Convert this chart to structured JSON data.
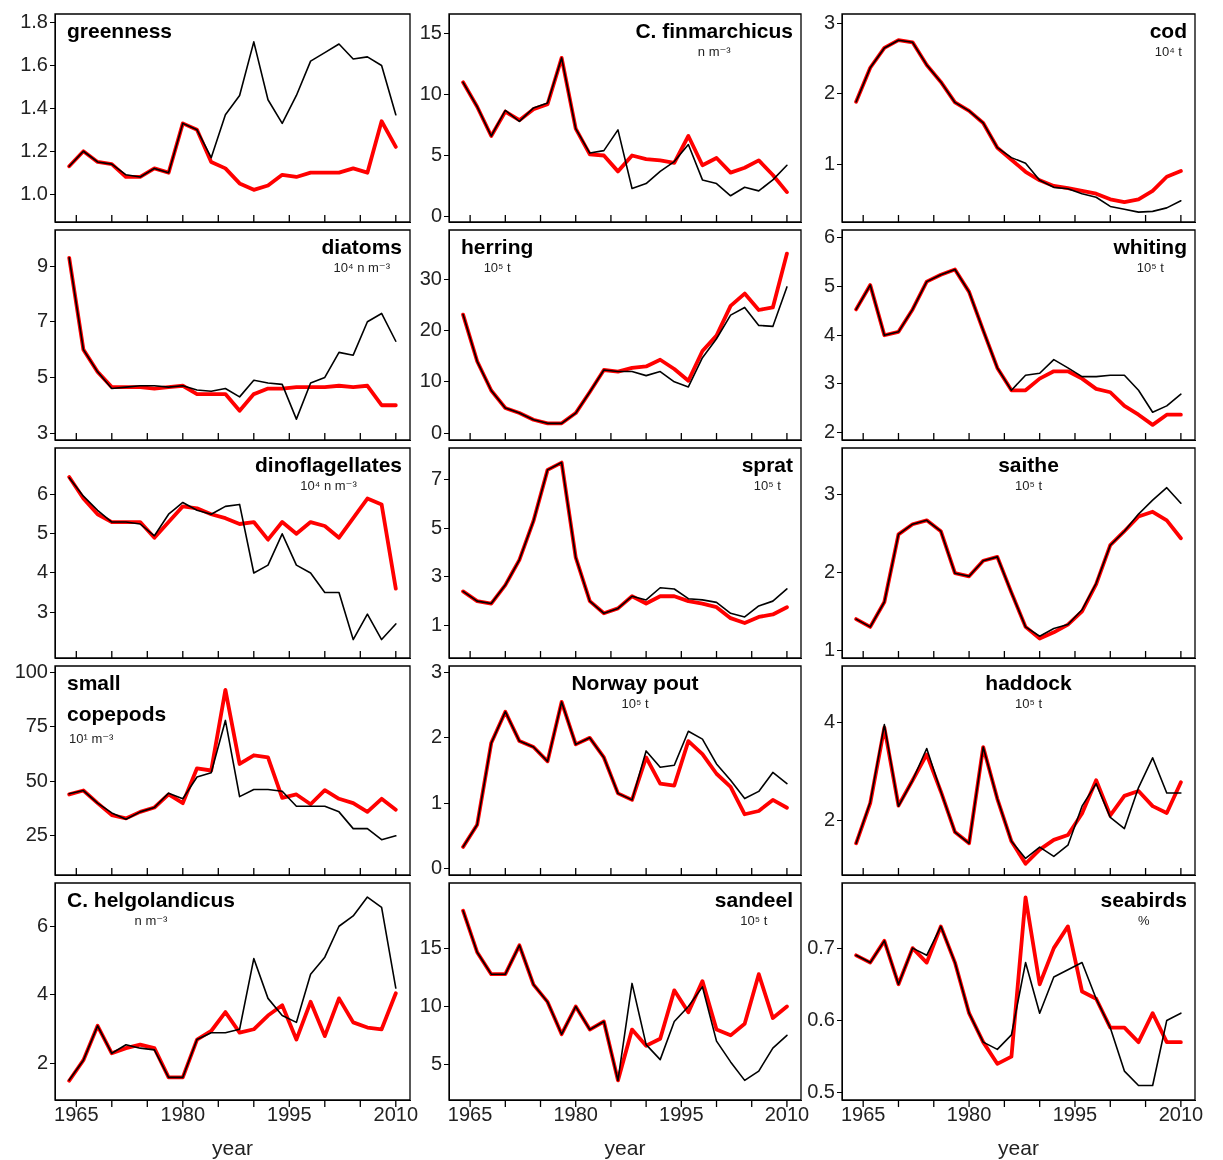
{
  "chart_data": [
    {
      "type": "line",
      "title": "greenness",
      "x": [
        1964,
        1966,
        1968,
        1970,
        1972,
        1974,
        1976,
        1978,
        1980,
        1982,
        1984,
        1986,
        1988,
        1990,
        1992,
        1994,
        1996,
        1998,
        2000,
        2002,
        2004,
        2006,
        2008,
        2010
      ],
      "xlim": [
        1962,
        2012
      ],
      "ylim": [
        0.87,
        1.84
      ],
      "xticks": [
        {
          "value": 1965,
          "label": null
        },
        {
          "value": 1970,
          "label": null
        },
        {
          "value": 1975,
          "label": null
        },
        {
          "value": 1980,
          "label": null
        },
        {
          "value": 1985,
          "label": null
        },
        {
          "value": 1990,
          "label": null
        },
        {
          "value": 1995,
          "label": null
        },
        {
          "value": 2000,
          "label": null
        },
        {
          "value": 2005,
          "label": null
        },
        {
          "value": 2010,
          "label": null
        }
      ],
      "yticks": [
        {
          "value": 1,
          "label": "1.0"
        },
        {
          "value": 1.2,
          "label": "1.2"
        },
        {
          "value": 1.4,
          "label": "1.4"
        },
        {
          "value": 1.6,
          "label": "1.6"
        },
        {
          "value": 1.8,
          "label": "1.8"
        }
      ],
      "tick_labels": "y",
      "series": [
        {
          "color": "#000000",
          "values": [
            1.13,
            1.2,
            1.15,
            1.14,
            1.09,
            1.08,
            1.12,
            1.1,
            1.33,
            1.3,
            1.17,
            1.37,
            1.46,
            1.71,
            1.44,
            1.33,
            1.46,
            1.62,
            1.66,
            1.7,
            1.63,
            1.64,
            1.6,
            1.37
          ]
        },
        {
          "color": "#ff0000",
          "values": [
            1.13,
            1.2,
            1.15,
            1.14,
            1.08,
            1.08,
            1.12,
            1.1,
            1.33,
            1.3,
            1.15,
            1.12,
            1.05,
            1.02,
            1.04,
            1.09,
            1.08,
            1.1,
            1.1,
            1.1,
            1.12,
            1.1,
            1.34,
            1.22
          ]
        }
      ]
    },
    {
      "type": "line",
      "title": "C. finmarchicus",
      "subtitle": "n m⁻³",
      "x": [
        1964,
        1966,
        1968,
        1970,
        1972,
        1974,
        1976,
        1978,
        1980,
        1982,
        1984,
        1986,
        1988,
        1990,
        1992,
        1994,
        1996,
        1998,
        2000,
        2002,
        2004,
        2006,
        2008,
        2010
      ],
      "xlim": [
        1962,
        2012
      ],
      "ylim": [
        -0.45,
        16.6
      ],
      "xticks": [
        {
          "value": 1965,
          "label": null
        },
        {
          "value": 1970,
          "label": null
        },
        {
          "value": 1975,
          "label": null
        },
        {
          "value": 1980,
          "label": null
        },
        {
          "value": 1985,
          "label": null
        },
        {
          "value": 1990,
          "label": null
        },
        {
          "value": 1995,
          "label": null
        },
        {
          "value": 2000,
          "label": null
        },
        {
          "value": 2005,
          "label": null
        },
        {
          "value": 2010,
          "label": null
        }
      ],
      "yticks": [
        0,
        5,
        10,
        15
      ],
      "tick_labels": "y",
      "series": [
        {
          "color": "#000000",
          "values": [
            11.0,
            9.0,
            6.6,
            8.7,
            7.8,
            8.9,
            9.3,
            13.0,
            7.2,
            5.2,
            5.4,
            7.1,
            2.3,
            2.7,
            3.7,
            4.5,
            5.9,
            3.0,
            2.7,
            1.7,
            2.4,
            2.1,
            3.0,
            4.2
          ]
        },
        {
          "color": "#ff0000",
          "values": [
            11.0,
            9.0,
            6.6,
            8.6,
            7.9,
            8.8,
            9.2,
            13.0,
            7.2,
            5.1,
            5.0,
            3.7,
            5.0,
            4.7,
            4.6,
            4.4,
            6.6,
            4.2,
            4.8,
            3.6,
            4.0,
            4.6,
            3.4,
            2.0
          ]
        }
      ]
    },
    {
      "type": "line",
      "title": "cod",
      "subtitle": "10⁴ t",
      "x": [
        1964,
        1966,
        1968,
        1970,
        1972,
        1974,
        1976,
        1978,
        1980,
        1982,
        1984,
        1986,
        1988,
        1990,
        1992,
        1994,
        1996,
        1998,
        2000,
        2002,
        2004,
        2006,
        2008,
        2010
      ],
      "xlim": [
        1962,
        2012
      ],
      "ylim": [
        0.19,
        3.13
      ],
      "xticks": [
        {
          "value": 1965,
          "label": null
        },
        {
          "value": 1970,
          "label": null
        },
        {
          "value": 1975,
          "label": null
        },
        {
          "value": 1980,
          "label": null
        },
        {
          "value": 1985,
          "label": null
        },
        {
          "value": 1990,
          "label": null
        },
        {
          "value": 1995,
          "label": null
        },
        {
          "value": 2000,
          "label": null
        },
        {
          "value": 2005,
          "label": null
        },
        {
          "value": 2010,
          "label": null
        }
      ],
      "yticks": [
        1,
        2,
        3
      ],
      "tick_labels": "y",
      "series": [
        {
          "color": "#000000",
          "values": [
            1.89,
            2.37,
            2.65,
            2.76,
            2.73,
            2.41,
            2.17,
            1.88,
            1.76,
            1.59,
            1.24,
            1.1,
            1.02,
            0.78,
            0.68,
            0.66,
            0.59,
            0.54,
            0.41,
            0.37,
            0.33,
            0.34,
            0.39,
            0.49
          ]
        },
        {
          "color": "#ff0000",
          "values": [
            1.89,
            2.37,
            2.65,
            2.76,
            2.73,
            2.41,
            2.17,
            1.88,
            1.76,
            1.59,
            1.24,
            1.07,
            0.9,
            0.78,
            0.7,
            0.67,
            0.63,
            0.59,
            0.51,
            0.47,
            0.51,
            0.63,
            0.83,
            0.91
          ]
        }
      ]
    },
    {
      "type": "line",
      "title": "diatoms",
      "subtitle": "10⁴ n m⁻³",
      "x": [
        1964,
        1966,
        1968,
        1970,
        1972,
        1974,
        1976,
        1978,
        1980,
        1982,
        1984,
        1986,
        1988,
        1990,
        1992,
        1994,
        1996,
        1998,
        2000,
        2002,
        2004,
        2006,
        2008,
        2010
      ],
      "xlim": [
        1962,
        2012
      ],
      "ylim": [
        2.75,
        10.3
      ],
      "xticks": [
        {
          "value": 1965,
          "label": null
        },
        {
          "value": 1970,
          "label": null
        },
        {
          "value": 1975,
          "label": null
        },
        {
          "value": 1980,
          "label": null
        },
        {
          "value": 1985,
          "label": null
        },
        {
          "value": 1990,
          "label": null
        },
        {
          "value": 1995,
          "label": null
        },
        {
          "value": 2000,
          "label": null
        },
        {
          "value": 2005,
          "label": null
        },
        {
          "value": 2010,
          "label": null
        }
      ],
      "yticks": [
        3,
        5,
        7,
        9
      ],
      "tick_labels": "y",
      "series": [
        {
          "color": "#000000",
          "values": [
            9.3,
            6.0,
            5.2,
            4.6,
            4.65,
            4.7,
            4.7,
            4.65,
            4.7,
            4.55,
            4.5,
            4.6,
            4.3,
            4.9,
            4.8,
            4.75,
            3.5,
            4.8,
            5.0,
            5.9,
            5.8,
            7.0,
            7.3,
            6.3
          ]
        },
        {
          "color": "#ff0000",
          "values": [
            9.3,
            6.0,
            5.2,
            4.65,
            4.65,
            4.65,
            4.6,
            4.65,
            4.7,
            4.4,
            4.4,
            4.4,
            3.8,
            4.4,
            4.6,
            4.6,
            4.65,
            4.65,
            4.65,
            4.7,
            4.65,
            4.7,
            4.0,
            4.0
          ]
        }
      ]
    },
    {
      "type": "line",
      "title": "herring",
      "subtitle": "10⁵ t",
      "x": [
        1964,
        1966,
        1968,
        1970,
        1972,
        1974,
        1976,
        1978,
        1980,
        1982,
        1984,
        1986,
        1988,
        1990,
        1992,
        1994,
        1996,
        1998,
        2000,
        2002,
        2004,
        2006,
        2008,
        2010
      ],
      "xlim": [
        1962,
        2012
      ],
      "ylim": [
        -1.35,
        39.6
      ],
      "xticks": [
        {
          "value": 1965,
          "label": null
        },
        {
          "value": 1970,
          "label": null
        },
        {
          "value": 1975,
          "label": null
        },
        {
          "value": 1980,
          "label": null
        },
        {
          "value": 1985,
          "label": null
        },
        {
          "value": 1990,
          "label": null
        },
        {
          "value": 1995,
          "label": null
        },
        {
          "value": 2000,
          "label": null
        },
        {
          "value": 2005,
          "label": null
        },
        {
          "value": 2010,
          "label": null
        }
      ],
      "yticks": [
        0,
        10,
        20,
        30
      ],
      "tick_labels": "y",
      "series": [
        {
          "color": "#000000",
          "values": [
            23.1,
            14.0,
            8.3,
            4.9,
            3.9,
            2.6,
            1.9,
            1.9,
            3.9,
            8.0,
            12.3,
            12.0,
            12.0,
            11.2,
            12.0,
            10.0,
            9.0,
            14.7,
            18.4,
            23.0,
            24.5,
            21.0,
            20.8,
            28.5
          ]
        },
        {
          "color": "#ff0000",
          "values": [
            23.1,
            14.0,
            8.3,
            4.9,
            3.9,
            2.6,
            1.9,
            1.9,
            3.9,
            8.0,
            12.3,
            12.0,
            12.7,
            13.0,
            14.3,
            12.5,
            10.2,
            16.0,
            19.0,
            24.8,
            27.2,
            24.0,
            24.5,
            35.0
          ]
        }
      ]
    },
    {
      "type": "line",
      "title": "whiting",
      "subtitle": "10⁵ t",
      "x": [
        1964,
        1966,
        1968,
        1970,
        1972,
        1974,
        1976,
        1978,
        1980,
        1982,
        1984,
        1986,
        1988,
        1990,
        1992,
        1994,
        1996,
        1998,
        2000,
        2002,
        2004,
        2006,
        2008,
        2010
      ],
      "xlim": [
        1962,
        2012
      ],
      "ylim": [
        1.85,
        6.16
      ],
      "xticks": [
        {
          "value": 1965,
          "label": null
        },
        {
          "value": 1970,
          "label": null
        },
        {
          "value": 1975,
          "label": null
        },
        {
          "value": 1980,
          "label": null
        },
        {
          "value": 1985,
          "label": null
        },
        {
          "value": 1990,
          "label": null
        },
        {
          "value": 1995,
          "label": null
        },
        {
          "value": 2000,
          "label": null
        },
        {
          "value": 2005,
          "label": null
        },
        {
          "value": 2010,
          "label": null
        }
      ],
      "yticks": [
        2,
        3,
        4,
        5,
        6
      ],
      "tick_labels": "y",
      "series": [
        {
          "color": "#000000",
          "values": [
            4.53,
            5.03,
            4.0,
            4.07,
            4.53,
            5.1,
            5.24,
            5.35,
            4.89,
            4.1,
            3.33,
            2.87,
            3.18,
            3.22,
            3.5,
            3.33,
            3.15,
            3.15,
            3.18,
            3.18,
            2.87,
            2.42,
            2.55,
            2.79
          ]
        },
        {
          "color": "#ff0000",
          "values": [
            4.53,
            5.03,
            4.0,
            4.07,
            4.53,
            5.1,
            5.24,
            5.35,
            4.89,
            4.1,
            3.33,
            2.87,
            2.87,
            3.11,
            3.26,
            3.26,
            3.11,
            2.9,
            2.83,
            2.55,
            2.37,
            2.16,
            2.37,
            2.37
          ]
        }
      ]
    },
    {
      "type": "line",
      "title": "dinoflagellates",
      "subtitle": "10⁴ n m⁻³",
      "x": [
        1964,
        1966,
        1968,
        1970,
        1972,
        1974,
        1976,
        1978,
        1980,
        1982,
        1984,
        1986,
        1988,
        1990,
        1992,
        1994,
        1996,
        1998,
        2000,
        2002,
        2004,
        2006,
        2008,
        2010
      ],
      "xlim": [
        1962,
        2012
      ],
      "ylim": [
        1.83,
        7.19
      ],
      "xticks": [
        {
          "value": 1965,
          "label": null
        },
        {
          "value": 1970,
          "label": null
        },
        {
          "value": 1975,
          "label": null
        },
        {
          "value": 1980,
          "label": null
        },
        {
          "value": 1985,
          "label": null
        },
        {
          "value": 1990,
          "label": null
        },
        {
          "value": 1995,
          "label": null
        },
        {
          "value": 2000,
          "label": null
        },
        {
          "value": 2005,
          "label": null
        },
        {
          "value": 2010,
          "label": null
        }
      ],
      "yticks": [
        3,
        4,
        5,
        6
      ],
      "tick_labels": "y",
      "series": [
        {
          "color": "#000000",
          "values": [
            6.43,
            5.96,
            5.6,
            5.3,
            5.3,
            5.25,
            4.95,
            5.5,
            5.8,
            5.6,
            5.5,
            5.7,
            5.75,
            4.0,
            4.2,
            5.0,
            4.2,
            4.0,
            3.5,
            3.5,
            2.3,
            2.95,
            2.3,
            2.7
          ]
        },
        {
          "color": "#ff0000",
          "values": [
            6.45,
            5.9,
            5.5,
            5.3,
            5.3,
            5.3,
            4.9,
            5.3,
            5.7,
            5.65,
            5.5,
            5.4,
            5.25,
            5.3,
            4.85,
            5.3,
            5.0,
            5.3,
            5.2,
            4.9,
            5.4,
            5.9,
            5.75,
            3.6
          ]
        }
      ]
    },
    {
      "type": "line",
      "title": "sprat",
      "subtitle": "10⁵ t",
      "x": [
        1964,
        1966,
        1968,
        1970,
        1972,
        1974,
        1976,
        1978,
        1980,
        1982,
        1984,
        1986,
        1988,
        1990,
        1992,
        1994,
        1996,
        1998,
        2000,
        2002,
        2004,
        2006,
        2008,
        2010
      ],
      "xlim": [
        1962,
        2012
      ],
      "ylim": [
        -0.34,
        8.3
      ],
      "xticks": [
        {
          "value": 1965,
          "label": null
        },
        {
          "value": 1970,
          "label": null
        },
        {
          "value": 1975,
          "label": null
        },
        {
          "value": 1980,
          "label": null
        },
        {
          "value": 1985,
          "label": null
        },
        {
          "value": 1990,
          "label": null
        },
        {
          "value": 1995,
          "label": null
        },
        {
          "value": 2000,
          "label": null
        },
        {
          "value": 2005,
          "label": null
        },
        {
          "value": 2010,
          "label": null
        }
      ],
      "yticks": [
        1,
        3,
        5,
        7
      ],
      "tick_labels": "y",
      "series": [
        {
          "color": "#000000",
          "values": [
            2.4,
            2.0,
            1.9,
            2.66,
            3.7,
            5.3,
            7.4,
            7.7,
            3.8,
            2.0,
            1.5,
            1.7,
            2.2,
            2.05,
            2.55,
            2.5,
            2.1,
            2.05,
            1.95,
            1.5,
            1.35,
            1.8,
            2.0,
            2.5
          ]
        },
        {
          "color": "#ff0000",
          "values": [
            2.4,
            2.0,
            1.9,
            2.66,
            3.7,
            5.3,
            7.4,
            7.7,
            3.8,
            2.0,
            1.5,
            1.7,
            2.2,
            1.9,
            2.2,
            2.2,
            2.0,
            1.9,
            1.75,
            1.3,
            1.1,
            1.35,
            1.45,
            1.75
          ]
        }
      ]
    },
    {
      "type": "line",
      "title": "saithe",
      "subtitle": "10⁵ t",
      "x": [
        1964,
        1966,
        1968,
        1970,
        1972,
        1974,
        1976,
        1978,
        1980,
        1982,
        1984,
        1986,
        1988,
        1990,
        1992,
        1994,
        1996,
        1998,
        2000,
        2002,
        2004,
        2006,
        2008,
        2010
      ],
      "xlim": [
        1962,
        2012
      ],
      "ylim": [
        0.9,
        3.6
      ],
      "xticks": [
        {
          "value": 1965,
          "label": null
        },
        {
          "value": 1970,
          "label": null
        },
        {
          "value": 1975,
          "label": null
        },
        {
          "value": 1980,
          "label": null
        },
        {
          "value": 1985,
          "label": null
        },
        {
          "value": 1990,
          "label": null
        },
        {
          "value": 1995,
          "label": null
        },
        {
          "value": 2000,
          "label": null
        },
        {
          "value": 2005,
          "label": null
        },
        {
          "value": 2010,
          "label": null
        }
      ],
      "yticks": [
        1,
        2,
        3
      ],
      "tick_labels": "y",
      "series": [
        {
          "color": "#000000",
          "values": [
            1.4,
            1.3,
            1.62,
            2.49,
            2.62,
            2.67,
            2.53,
            1.99,
            1.95,
            2.15,
            2.2,
            1.74,
            1.3,
            1.18,
            1.28,
            1.33,
            1.52,
            1.86,
            2.35,
            2.53,
            2.75,
            2.93,
            3.09,
            2.89
          ]
        },
        {
          "color": "#ff0000",
          "values": [
            1.4,
            1.3,
            1.62,
            2.49,
            2.62,
            2.67,
            2.53,
            1.99,
            1.95,
            2.15,
            2.2,
            1.74,
            1.3,
            1.15,
            1.23,
            1.33,
            1.5,
            1.85,
            2.35,
            2.53,
            2.72,
            2.78,
            2.67,
            2.44
          ]
        }
      ]
    },
    {
      "type": "line",
      "title": "small copepods",
      "subtitle": "10¹ m⁻³",
      "x": [
        1964,
        1966,
        1968,
        1970,
        1972,
        1974,
        1976,
        1978,
        1980,
        1982,
        1984,
        1986,
        1988,
        1990,
        1992,
        1994,
        1996,
        1998,
        2000,
        2002,
        2004,
        2006,
        2008,
        2010
      ],
      "xlim": [
        1962,
        2012
      ],
      "ylim": [
        7,
        103
      ],
      "xticks": [
        {
          "value": 1965,
          "label": null
        },
        {
          "value": 1970,
          "label": null
        },
        {
          "value": 1975,
          "label": null
        },
        {
          "value": 1980,
          "label": null
        },
        {
          "value": 1985,
          "label": null
        },
        {
          "value": 1990,
          "label": null
        },
        {
          "value": 1995,
          "label": null
        },
        {
          "value": 2000,
          "label": null
        },
        {
          "value": 2005,
          "label": null
        },
        {
          "value": 2010,
          "label": null
        }
      ],
      "yticks": [
        25,
        50,
        75,
        100
      ],
      "tick_labels": "y",
      "series": [
        {
          "color": "#000000",
          "values": [
            44.3,
            45.8,
            40,
            35.5,
            32.6,
            36,
            38,
            44.6,
            42,
            52,
            54,
            78,
            43,
            46.3,
            46.3,
            45.5,
            38.6,
            38.6,
            38.6,
            36,
            28.3,
            28.3,
            23.2,
            25
          ]
        },
        {
          "color": "#ff0000",
          "values": [
            44,
            45.8,
            40,
            34.5,
            33,
            36,
            38,
            44,
            40,
            56,
            55,
            92,
            58,
            62,
            61,
            42.4,
            44,
            39.5,
            46,
            42,
            40,
            36,
            42,
            37
          ]
        }
      ]
    },
    {
      "type": "line",
      "title": "Norway pout",
      "subtitle": "10⁵ t",
      "x": [
        1964,
        1966,
        1968,
        1970,
        1972,
        1974,
        1976,
        1978,
        1980,
        1982,
        1984,
        1986,
        1988,
        1990,
        1992,
        1994,
        1996,
        1998,
        2000,
        2002,
        2004,
        2006,
        2008,
        2010
      ],
      "xlim": [
        1962,
        2012
      ],
      "ylim": [
        -0.1,
        3.1
      ],
      "xticks": [
        {
          "value": 1965,
          "label": null
        },
        {
          "value": 1970,
          "label": null
        },
        {
          "value": 1975,
          "label": null
        },
        {
          "value": 1980,
          "label": null
        },
        {
          "value": 1985,
          "label": null
        },
        {
          "value": 1990,
          "label": null
        },
        {
          "value": 1995,
          "label": null
        },
        {
          "value": 2000,
          "label": null
        },
        {
          "value": 2005,
          "label": null
        },
        {
          "value": 2010,
          "label": null
        }
      ],
      "yticks": [
        0,
        1,
        2,
        3
      ],
      "tick_labels": "y",
      "series": [
        {
          "color": "#000000",
          "values": [
            0.33,
            0.67,
            1.92,
            2.4,
            1.95,
            1.86,
            1.64,
            2.55,
            1.9,
            2.0,
            1.7,
            1.15,
            1.05,
            1.8,
            1.55,
            1.58,
            2.1,
            1.98,
            1.6,
            1.35,
            1.07,
            1.18,
            1.47,
            1.3
          ]
        },
        {
          "color": "#ff0000",
          "values": [
            0.33,
            0.67,
            1.92,
            2.4,
            1.95,
            1.86,
            1.64,
            2.55,
            1.9,
            2.0,
            1.7,
            1.15,
            1.05,
            1.7,
            1.3,
            1.27,
            1.95,
            1.75,
            1.45,
            1.25,
            0.83,
            0.88,
            1.05,
            0.93
          ]
        }
      ]
    },
    {
      "type": "line",
      "title": "haddock",
      "subtitle": "10⁵ t",
      "x": [
        1964,
        1966,
        1968,
        1970,
        1972,
        1974,
        1976,
        1978,
        1980,
        1982,
        1984,
        1986,
        1988,
        1990,
        1992,
        1994,
        1996,
        1998,
        2000,
        2002,
        2004,
        2006,
        2008,
        2010
      ],
      "xlim": [
        1962,
        2012
      ],
      "ylim": [
        0.88,
        5.16
      ],
      "xticks": [
        {
          "value": 1965,
          "label": null
        },
        {
          "value": 1970,
          "label": null
        },
        {
          "value": 1975,
          "label": null
        },
        {
          "value": 1980,
          "label": null
        },
        {
          "value": 1985,
          "label": null
        },
        {
          "value": 1990,
          "label": null
        },
        {
          "value": 1995,
          "label": null
        },
        {
          "value": 2000,
          "label": null
        },
        {
          "value": 2005,
          "label": null
        },
        {
          "value": 2010,
          "label": null
        }
      ],
      "yticks": [
        2,
        4
      ],
      "tick_labels": "y",
      "series": [
        {
          "color": "#000000",
          "values": [
            1.53,
            2.37,
            3.96,
            2.29,
            2.82,
            3.47,
            2.59,
            1.76,
            1.53,
            3.5,
            2.44,
            1.57,
            1.22,
            1.45,
            1.26,
            1.49,
            2.29,
            2.75,
            2.06,
            1.83,
            2.67,
            3.28,
            2.56,
            2.56
          ]
        },
        {
          "color": "#ff0000",
          "values": [
            1.53,
            2.35,
            3.9,
            2.3,
            2.82,
            3.35,
            2.59,
            1.76,
            1.53,
            3.5,
            2.44,
            1.57,
            1.11,
            1.4,
            1.6,
            1.7,
            2.14,
            2.82,
            2.1,
            2.5,
            2.6,
            2.29,
            2.15,
            2.78
          ]
        }
      ]
    },
    {
      "type": "line",
      "title": "C. helgolandicus",
      "subtitle": "n m⁻³",
      "xlabel": "year",
      "x": [
        1964,
        1966,
        1968,
        1970,
        1972,
        1974,
        1976,
        1978,
        1980,
        1982,
        1984,
        1986,
        1988,
        1990,
        1992,
        1994,
        1996,
        1998,
        2000,
        2002,
        2004,
        2006,
        2008,
        2010
      ],
      "xlim": [
        1962,
        2012
      ],
      "ylim": [
        0.94,
        7.26
      ],
      "xticks": [
        {
          "value": 1965,
          "label": "1965"
        },
        {
          "value": 1970,
          "label": null
        },
        {
          "value": 1975,
          "label": null
        },
        {
          "value": 1980,
          "label": "1980"
        },
        {
          "value": 1985,
          "label": null
        },
        {
          "value": 1990,
          "label": null
        },
        {
          "value": 1995,
          "label": "1995"
        },
        {
          "value": 2000,
          "label": null
        },
        {
          "value": 2005,
          "label": null
        },
        {
          "value": 2010,
          "label": "2010"
        }
      ],
      "yticks": [
        2,
        4,
        6
      ],
      "series": [
        {
          "color": "#000000",
          "values": [
            1.52,
            2.1,
            3.1,
            2.3,
            2.55,
            2.45,
            2.4,
            1.6,
            1.6,
            2.7,
            2.9,
            2.9,
            3.0,
            5.06,
            3.9,
            3.4,
            3.2,
            4.6,
            5.1,
            6.0,
            6.3,
            6.85,
            6.55,
            4.2
          ]
        },
        {
          "color": "#ff0000",
          "values": [
            1.5,
            2.1,
            3.1,
            2.3,
            2.45,
            2.55,
            2.45,
            1.6,
            1.6,
            2.7,
            2.95,
            3.5,
            2.9,
            3.0,
            3.4,
            3.7,
            2.7,
            3.8,
            2.8,
            3.9,
            3.2,
            3.05,
            3.0,
            4.05
          ]
        }
      ]
    },
    {
      "type": "line",
      "title": "sandeel",
      "subtitle": "10⁵ t",
      "xlabel": "year",
      "x": [
        1964,
        1966,
        1968,
        1970,
        1972,
        1974,
        1976,
        1978,
        1980,
        1982,
        1984,
        1986,
        1988,
        1990,
        1992,
        1994,
        1996,
        1998,
        2000,
        2002,
        2004,
        2006,
        2008,
        2010
      ],
      "xlim": [
        1962,
        2012
      ],
      "ylim": [
        1.9,
        20.7
      ],
      "xticks": [
        {
          "value": 1965,
          "label": "1965"
        },
        {
          "value": 1970,
          "label": null
        },
        {
          "value": 1975,
          "label": null
        },
        {
          "value": 1980,
          "label": "1980"
        },
        {
          "value": 1985,
          "label": null
        },
        {
          "value": 1990,
          "label": null
        },
        {
          "value": 1995,
          "label": "1995"
        },
        {
          "value": 2000,
          "label": null
        },
        {
          "value": 2005,
          "label": null
        },
        {
          "value": 2010,
          "label": "2010"
        }
      ],
      "yticks": [
        5,
        10,
        15
      ],
      "series": [
        {
          "color": "#000000",
          "values": [
            18.3,
            14.7,
            12.8,
            12.8,
            15.3,
            11.9,
            10.4,
            7.6,
            10.0,
            8.0,
            8.7,
            3.6,
            12.0,
            6.7,
            5.4,
            8.7,
            10.0,
            11.7,
            7.0,
            5.2,
            3.6,
            4.4,
            6.4,
            7.5
          ]
        },
        {
          "color": "#ff0000",
          "values": [
            18.3,
            14.7,
            12.8,
            12.8,
            15.3,
            11.9,
            10.4,
            7.6,
            10.0,
            8.0,
            8.7,
            3.6,
            8.0,
            6.6,
            7.2,
            11.4,
            9.5,
            12.2,
            8.0,
            7.5,
            8.5,
            12.8,
            9.0,
            10.0
          ]
        }
      ]
    },
    {
      "type": "line",
      "title": "seabirds",
      "subtitle": "%",
      "xlabel": "year",
      "x": [
        1964,
        1966,
        1968,
        1970,
        1972,
        1974,
        1976,
        1978,
        1980,
        1982,
        1984,
        1986,
        1988,
        1990,
        1992,
        1994,
        1996,
        1998,
        2000,
        2002,
        2004,
        2006,
        2008,
        2010
      ],
      "xlim": [
        1962,
        2012
      ],
      "ylim": [
        0.49,
        0.79
      ],
      "xticks": [
        {
          "value": 1965,
          "label": "1965"
        },
        {
          "value": 1970,
          "label": null
        },
        {
          "value": 1975,
          "label": null
        },
        {
          "value": 1980,
          "label": "1980"
        },
        {
          "value": 1985,
          "label": null
        },
        {
          "value": 1990,
          "label": null
        },
        {
          "value": 1995,
          "label": "1995"
        },
        {
          "value": 2000,
          "label": null
        },
        {
          "value": 2005,
          "label": null
        },
        {
          "value": 2010,
          "label": "2010"
        }
      ],
      "yticks": [
        0.5,
        0.6,
        0.7
      ],
      "series": [
        {
          "color": "#000000",
          "values": [
            0.69,
            0.68,
            0.71,
            0.65,
            0.7,
            0.69,
            0.73,
            0.68,
            0.61,
            0.57,
            0.56,
            0.58,
            0.68,
            0.61,
            0.66,
            0.67,
            0.68,
            0.63,
            0.59,
            0.53,
            0.51,
            0.51,
            0.6,
            0.61
          ]
        },
        {
          "color": "#ff0000",
          "values": [
            0.69,
            0.68,
            0.71,
            0.65,
            0.7,
            0.68,
            0.73,
            0.68,
            0.61,
            0.57,
            0.54,
            0.55,
            0.77,
            0.65,
            0.7,
            0.73,
            0.64,
            0.63,
            0.59,
            0.59,
            0.57,
            0.61,
            0.57,
            0.57
          ]
        }
      ]
    }
  ]
}
